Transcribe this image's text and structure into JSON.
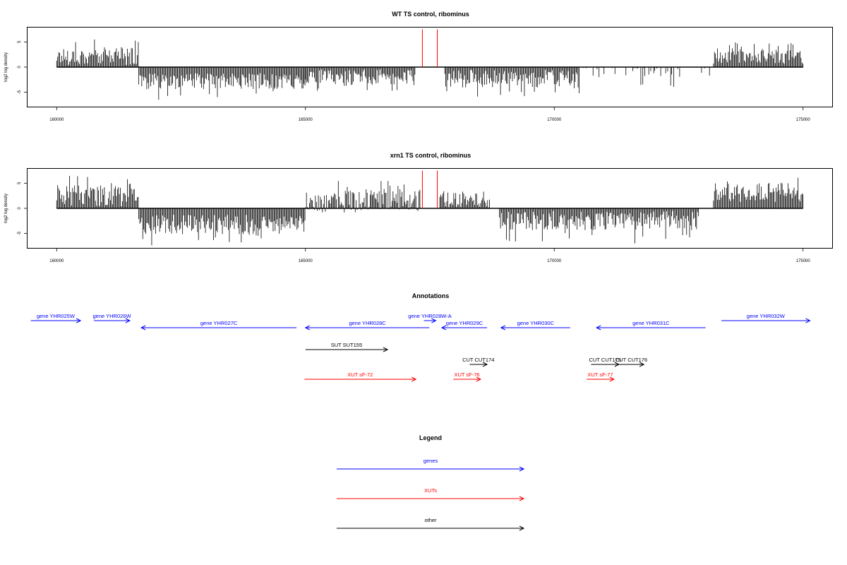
{
  "chart_data": [
    {
      "type": "bar",
      "title": "WT TS control, ribominus",
      "ylabel": "log2 log density",
      "xlim": [
        159400,
        175600
      ],
      "ylim": [
        -8,
        8
      ],
      "xticks": [
        "160000",
        "165000",
        "170000",
        "175000"
      ],
      "yticks": [
        "5",
        "0",
        "-5"
      ],
      "highlight_color": "#ff0000",
      "highlight_positions": [
        167350,
        167650
      ],
      "highlight_height": 7.5,
      "segments": [
        {
          "from": 160000,
          "to": 161650,
          "mean": 2.2,
          "spread": 1.1,
          "peak": 5.5,
          "dir": 1
        },
        {
          "from": 161650,
          "to": 165000,
          "mean": -2.8,
          "spread": 1.0,
          "peak": -6.5,
          "dir": -1
        },
        {
          "from": 165000,
          "to": 167200,
          "mean": -2.0,
          "spread": 1.0,
          "peak": -5.0,
          "dir": -1
        },
        {
          "from": 167800,
          "to": 170500,
          "mean": -2.3,
          "spread": 1.1,
          "peak": -6.0,
          "dir": -1
        },
        {
          "from": 170500,
          "to": 173200,
          "mean": -0.6,
          "spread": 1.0,
          "peak": -4.0,
          "dir": -1,
          "sparse": 0.3
        },
        {
          "from": 173200,
          "to": 175000,
          "mean": 2.2,
          "spread": 1.0,
          "peak": 5.0,
          "dir": 1
        }
      ]
    },
    {
      "type": "bar",
      "title": "xrn1 TS control, ribominus",
      "ylabel": "log2 log density",
      "xlim": [
        159400,
        175600
      ],
      "ylim": [
        -8,
        8
      ],
      "xticks": [
        "160000",
        "165000",
        "170000",
        "175000"
      ],
      "yticks": [
        "5",
        "0",
        "-5"
      ],
      "highlight_color": "#ff0000",
      "highlight_positions": [
        167350,
        167650
      ],
      "highlight_height": 7.5,
      "segments": [
        {
          "from": 160000,
          "to": 161650,
          "mean": 2.5,
          "spread": 1.3,
          "peak": 6.5,
          "dir": 1
        },
        {
          "from": 161650,
          "to": 165000,
          "mean": -3.2,
          "spread": 1.2,
          "peak": -7.5,
          "dir": -1
        },
        {
          "from": 165000,
          "to": 167300,
          "mean": 1.5,
          "spread": 1.5,
          "peak": 5.5,
          "dir": 0
        },
        {
          "from": 167700,
          "to": 168700,
          "mean": 1.8,
          "spread": 1.0,
          "peak": 3.5,
          "dir": 1
        },
        {
          "from": 168900,
          "to": 172900,
          "mean": -2.4,
          "spread": 1.2,
          "peak": -7.0,
          "dir": -1
        },
        {
          "from": 173200,
          "to": 175000,
          "mean": 3.2,
          "spread": 1.2,
          "peak": 7.0,
          "dir": 1
        }
      ]
    }
  ],
  "annotations": {
    "title": "Annotations",
    "xlim": [
      159400,
      175600
    ],
    "items": [
      {
        "label": "gene YHR025W",
        "start": 159480,
        "end": 160480,
        "dir": "right",
        "row": 0,
        "color": "#0000ff"
      },
      {
        "label": "gene YHR026W",
        "start": 160750,
        "end": 161470,
        "dir": "right",
        "row": 0,
        "color": "#0000ff"
      },
      {
        "label": "gene YHR027C",
        "start": 161700,
        "end": 164820,
        "dir": "left",
        "row": 1,
        "color": "#0000ff"
      },
      {
        "label": "gene YHR028C",
        "start": 165000,
        "end": 167490,
        "dir": "left",
        "row": 1,
        "color": "#0000ff"
      },
      {
        "label": "gene YHR028W-A",
        "start": 167380,
        "end": 167620,
        "dir": "right",
        "row": 0,
        "color": "#0000ff"
      },
      {
        "label": "gene YHR029C",
        "start": 167740,
        "end": 168650,
        "dir": "left",
        "row": 1,
        "color": "#0000ff"
      },
      {
        "label": "gene YHR030C",
        "start": 168930,
        "end": 170320,
        "dir": "left",
        "row": 1,
        "color": "#0000ff"
      },
      {
        "label": "gene YHR031C",
        "start": 170850,
        "end": 173040,
        "dir": "left",
        "row": 1,
        "color": "#0000ff"
      },
      {
        "label": "gene YHR032W",
        "start": 173360,
        "end": 175140,
        "dir": "right",
        "row": 0,
        "color": "#0000ff"
      },
      {
        "label": "SUT SUT155",
        "start": 165000,
        "end": 166650,
        "dir": "right",
        "row": 2,
        "color": "#000000"
      },
      {
        "label": "CUT CUT174",
        "start": 168300,
        "end": 168650,
        "dir": "right",
        "row": 3,
        "color": "#000000"
      },
      {
        "label": "CUT CUT175",
        "start": 170740,
        "end": 171300,
        "dir": "right",
        "row": 3,
        "color": "#000000"
      },
      {
        "label": "CUT CUT176",
        "start": 171300,
        "end": 171800,
        "dir": "right",
        "row": 3,
        "color": "#000000"
      },
      {
        "label": "XUT sF-72",
        "start": 164980,
        "end": 167220,
        "dir": "right",
        "row": 4,
        "color": "#ff0000"
      },
      {
        "label": "XUT sF-76",
        "start": 167970,
        "end": 168520,
        "dir": "right",
        "row": 4,
        "color": "#ff0000"
      },
      {
        "label": "XUT sF-77",
        "start": 170650,
        "end": 171200,
        "dir": "right",
        "row": 4,
        "color": "#ff0000"
      }
    ]
  },
  "legend": {
    "title": "Legend",
    "items": [
      {
        "label": "genes",
        "color": "#0000ff"
      },
      {
        "label": "XUTs",
        "color": "#ff0000"
      },
      {
        "label": "other",
        "color": "#000000"
      }
    ]
  }
}
